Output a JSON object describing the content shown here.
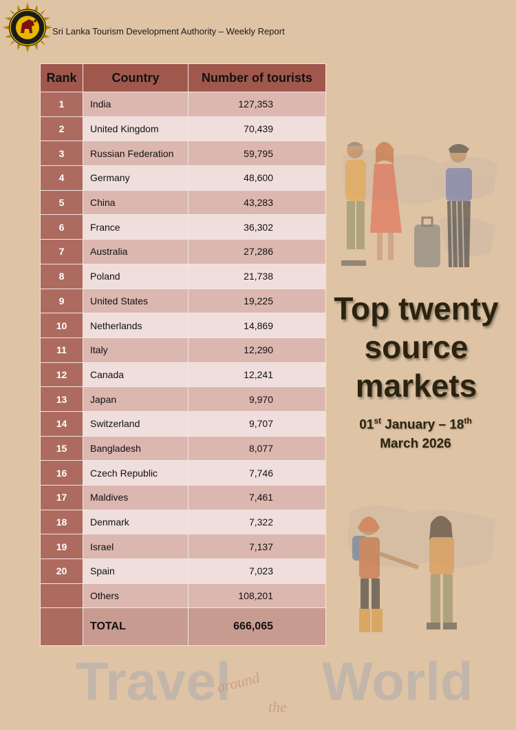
{
  "header": {
    "title": "Sri Lanka Tourism Development Authority – Weekly Report"
  },
  "table": {
    "headers": {
      "rank": "Rank",
      "country": "Country",
      "count": "Number of tourists"
    },
    "rows": [
      {
        "rank": "1",
        "country": "India",
        "count": "127,353"
      },
      {
        "rank": "2",
        "country": "United Kingdom",
        "count": "70,439"
      },
      {
        "rank": "3",
        "country": "Russian Federation",
        "count": "59,795"
      },
      {
        "rank": "4",
        "country": "Germany",
        "count": "48,600"
      },
      {
        "rank": "5",
        "country": "China",
        "count": "43,283"
      },
      {
        "rank": "6",
        "country": "France",
        "count": "36,302"
      },
      {
        "rank": "7",
        "country": "Australia",
        "count": "27,286"
      },
      {
        "rank": "8",
        "country": "Poland",
        "count": "21,738"
      },
      {
        "rank": "9",
        "country": "United States",
        "count": "19,225"
      },
      {
        "rank": "10",
        "country": "Netherlands",
        "count": "14,869"
      },
      {
        "rank": "11",
        "country": "Italy",
        "count": "12,290"
      },
      {
        "rank": "12",
        "country": "Canada",
        "count": "12,241"
      },
      {
        "rank": "13",
        "country": "Japan",
        "count": "9,970"
      },
      {
        "rank": "14",
        "country": "Switzerland",
        "count": "9,707"
      },
      {
        "rank": "15",
        "country": "Bangladesh",
        "count": "8,077"
      },
      {
        "rank": "16",
        "country": "Czech Republic",
        "count": "7,746"
      },
      {
        "rank": "17",
        "country": "Maldives",
        "count": "7,461"
      },
      {
        "rank": "18",
        "country": "Denmark",
        "count": "7,322"
      },
      {
        "rank": "19",
        "country": "Israel",
        "count": "7,137"
      },
      {
        "rank": "20",
        "country": "Spain",
        "count": "7,023"
      },
      {
        "rank": "",
        "country": "Others",
        "count": "108,201"
      }
    ],
    "total": {
      "label": "TOTAL",
      "count": "666,065"
    }
  },
  "headline": {
    "line1": "Top twenty",
    "line2": "source",
    "line3": "markets"
  },
  "dates": {
    "start_day": "01",
    "start_suffix": "st",
    "start_month": "January",
    "separator": "–",
    "end_day": "18",
    "end_suffix": "th",
    "end_month": "March",
    "year": "2026"
  },
  "watermark": {
    "word1": "Travel",
    "word2": "around",
    "word3": "the",
    "word4": "World"
  },
  "icons": {
    "logo": "sri-lanka-tourism-emblem",
    "illustration_top": "tourists-with-luggage",
    "illustration_bottom": "hikers-holding-hands"
  },
  "colors": {
    "background": "#dec3a4",
    "header_cell": "#a0584c",
    "rank_cell": "#ad6b60",
    "row_odd": "#dcb7b0",
    "row_even": "#efdedb",
    "headline": "#2b2310"
  }
}
